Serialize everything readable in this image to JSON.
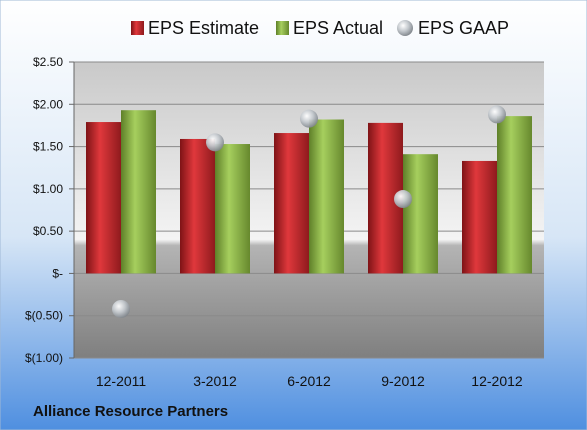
{
  "chart_data": {
    "type": "bar",
    "categories": [
      "12-2011",
      "3-2012",
      "6-2012",
      "9-2012",
      "12-2012"
    ],
    "series": [
      {
        "name": "EPS Estimate",
        "kind": "bar",
        "color": "#c0262b",
        "values": [
          1.79,
          1.59,
          1.66,
          1.78,
          1.33
        ]
      },
      {
        "name": "EPS Actual",
        "kind": "bar",
        "color": "#8cb544",
        "values": [
          1.93,
          1.53,
          1.82,
          1.41,
          1.86
        ]
      },
      {
        "name": "EPS GAAP",
        "kind": "scatter",
        "color": "#b9bec4",
        "values": [
          -0.42,
          1.55,
          1.83,
          0.88,
          1.88
        ]
      }
    ],
    "yticks": [
      2.5,
      2.0,
      1.5,
      1.0,
      0.5,
      0,
      -0.5,
      -1.0
    ],
    "ytick_labels": [
      "$2.50",
      "$2.00",
      "$1.50",
      "$1.00",
      "$0.50",
      "$-",
      "$(0.50)",
      "$(1.00)"
    ],
    "ylim": [
      -1.0,
      2.5
    ],
    "grid": true,
    "legend_position": "top",
    "footer": "Alliance Resource Partners"
  }
}
